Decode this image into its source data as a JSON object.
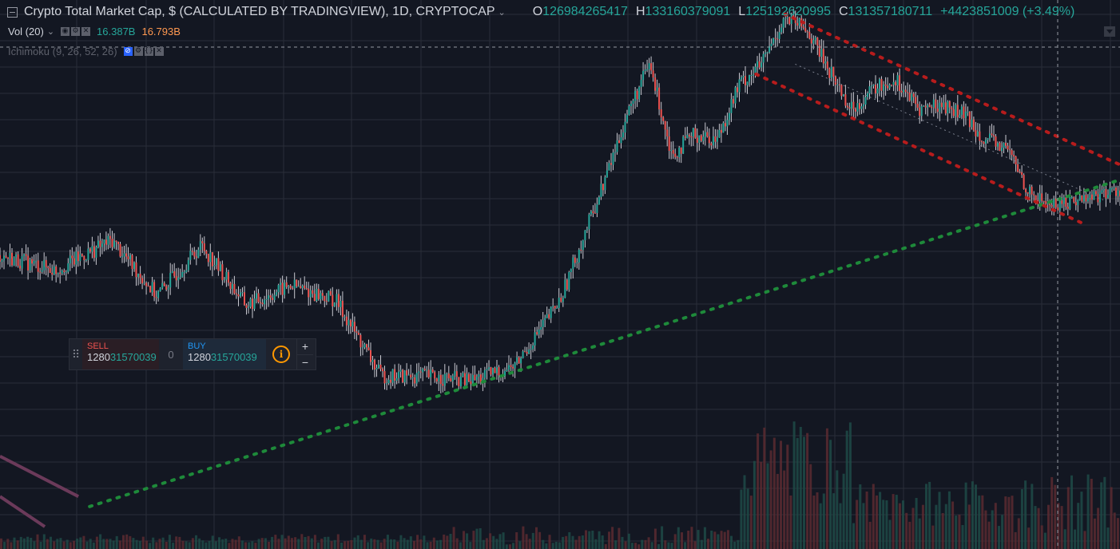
{
  "header": {
    "title": "Crypto Total Market Cap, $ (CALCULATED BY TRADINGVIEW), 1D, CRYPTOCAP",
    "ohlc": {
      "o_key": "O",
      "o": "126984265417",
      "h_key": "H",
      "h": "133160379091",
      "l_key": "L",
      "l": "125192620995",
      "c_key": "C",
      "c": "131357180711",
      "change": "+4423851009 (+3.49%)"
    }
  },
  "indicators": {
    "vol": {
      "label": "Vol (20)",
      "value1": "16.387B",
      "value2": "16.793B"
    },
    "ichimoku": {
      "label": "Ichimoku (9, 26, 52, 26)"
    }
  },
  "trade_panel": {
    "sell_label": "SELL",
    "sell_price_main": "1280",
    "sell_price_sub": "31570039",
    "spread": "0",
    "buy_label": "BUY",
    "buy_price_main": "1280",
    "buy_price_sub": "31570039",
    "info_glyph": "i",
    "plus": "+",
    "minus": "−",
    "grip_glyph": "⠿"
  },
  "colors": {
    "background": "#131722",
    "grid": "#2a2e39",
    "up": "#26a69a",
    "down": "#ef5350",
    "wick": "#c8c8d0",
    "support": "#1e8a3a",
    "channel": "#b71c1c",
    "old_channel": "#6b3a5a"
  },
  "chart_data": {
    "type": "line",
    "title": "Crypto Total Market Cap, $ (CALCULATED BY TRADINGVIEW), 1D, CRYPTOCAP",
    "x": [
      0,
      5,
      10,
      14,
      18,
      22,
      26,
      30,
      34,
      38,
      42,
      46,
      50,
      54,
      56,
      58,
      60,
      62,
      64,
      66,
      68,
      70,
      72,
      74,
      76,
      78,
      80,
      82,
      84,
      86,
      88,
      90,
      92,
      94,
      96,
      98,
      100
    ],
    "values": [
      54,
      51,
      57,
      46,
      56,
      44,
      48,
      45,
      30,
      30,
      29,
      32,
      45,
      69,
      82,
      92,
      74,
      78,
      77,
      88,
      92,
      101,
      99,
      91,
      83,
      87,
      89,
      83,
      84,
      82,
      77,
      75,
      66,
      64,
      65,
      66,
      67
    ],
    "ylim": [
      0,
      100
    ],
    "grid": true,
    "annotations": [
      "support-trendline",
      "descending-channel",
      "volume-bars"
    ]
  }
}
